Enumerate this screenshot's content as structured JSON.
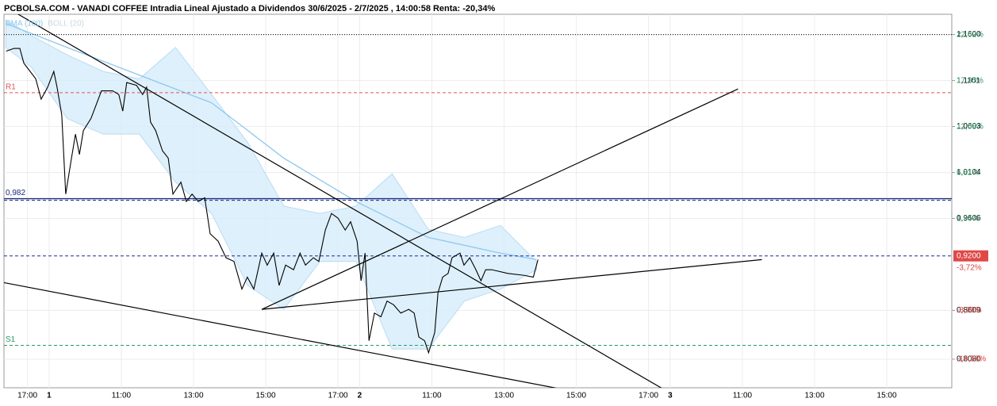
{
  "chart_data": {
    "type": "line",
    "title": "PCBOLSA.COM - VANADI COFFEE Intradia Lineal Ajustado a Dividendos 30/6/2025 - 2/7/2025 , 14:00:58 Renta: -20,34%",
    "xlim": [
      -1.25,
      25
    ],
    "ylim": [
      0.777,
      1.182
    ],
    "y2lim": [
      -17.85,
      24.98
    ],
    "grid": true,
    "xticks": [
      {
        "value": -0.6,
        "label": "17:00"
      },
      {
        "value": 0,
        "label": "1"
      },
      {
        "value": 2,
        "label": "11:00"
      },
      {
        "value": 4,
        "label": "13:00"
      },
      {
        "value": 6,
        "label": "15:00"
      },
      {
        "value": 8,
        "label": "17:00"
      },
      {
        "value": 8.6,
        "label": "2"
      },
      {
        "value": 10.6,
        "label": "11:00"
      },
      {
        "value": 12.6,
        "label": "13:00"
      },
      {
        "value": 14.6,
        "label": "15:00"
      },
      {
        "value": 16.6,
        "label": "17:00"
      },
      {
        "value": 17.2,
        "label": "3"
      },
      {
        "value": 19.2,
        "label": "11:00"
      },
      {
        "value": 21.2,
        "label": "13:00"
      },
      {
        "value": 23.2,
        "label": "15:00"
      }
    ],
    "yticks": [
      {
        "value": 1.16,
        "label": "1,1600"
      },
      {
        "value": 1.1101,
        "label": "1,1101"
      },
      {
        "value": 1.0603,
        "label": "1,0603"
      },
      {
        "value": 1.0104,
        "label": "1,0104"
      },
      {
        "value": 0.9606,
        "label": "0,9606"
      },
      {
        "value": 0.8609,
        "label": "0,8609"
      },
      {
        "value": 0.808,
        "label": "0,8080"
      }
    ],
    "y2ticks": [
      {
        "value": 22.62,
        "label": "22,62%"
      },
      {
        "value": 17.35,
        "label": "17,35%"
      },
      {
        "value": 12.08,
        "label": "12,08%"
      },
      {
        "value": 6.81,
        "label": "6,81%"
      },
      {
        "value": 1.54,
        "label": "1,54%"
      },
      {
        "value": -8.99,
        "label": "-8,99%"
      },
      {
        "value": -14.58,
        "label": "-14,58%"
      }
    ],
    "price": {
      "color": "#000000",
      "x": [
        -1.19,
        -0.97,
        -0.81,
        -0.7,
        -0.37,
        -0.22,
        -0.04,
        0.13,
        0.22,
        0.35,
        0.46,
        0.62,
        0.73,
        0.84,
        0.95,
        1.16,
        1.45,
        1.76,
        1.93,
        2.04,
        2.15,
        2.42,
        2.59,
        2.7,
        2.81,
        2.95,
        3.14,
        3.3,
        3.43,
        3.65,
        3.8,
        3.96,
        4.13,
        4.31,
        4.46,
        4.68,
        4.9,
        5.12,
        5.34,
        5.49,
        5.67,
        5.89,
        6.04,
        6.22,
        6.37,
        6.55,
        6.77,
        6.95,
        7.1,
        7.32,
        7.47,
        7.65,
        7.82,
        8.0,
        8.2,
        8.35,
        8.53,
        8.64,
        8.75,
        8.86,
        9.01,
        9.19,
        9.36,
        9.54,
        9.74,
        9.96,
        10.11,
        10.24,
        10.4,
        10.51,
        10.68,
        10.77,
        10.9,
        11.05,
        11.16,
        11.38,
        11.49,
        11.65,
        11.82,
        11.96,
        12.09,
        12.26,
        12.7,
        13.14,
        13.41,
        13.54
      ],
      "values": [
        1.142,
        1.145,
        1.145,
        1.129,
        1.112,
        1.09,
        1.103,
        1.12,
        1.103,
        1.073,
        0.987,
        1.026,
        1.052,
        1.03,
        1.056,
        1.069,
        1.099,
        1.099,
        1.095,
        1.077,
        1.108,
        1.105,
        1.095,
        1.103,
        1.065,
        1.056,
        1.034,
        1.026,
        0.987,
        1.0,
        0.979,
        0.987,
        0.979,
        0.983,
        0.944,
        0.936,
        0.918,
        0.914,
        0.884,
        0.897,
        0.884,
        0.923,
        0.91,
        0.923,
        0.888,
        0.91,
        0.905,
        0.923,
        0.91,
        0.918,
        0.914,
        0.948,
        0.966,
        0.961,
        0.948,
        0.957,
        0.936,
        0.893,
        0.923,
        0.828,
        0.858,
        0.854,
        0.871,
        0.867,
        0.858,
        0.862,
        0.858,
        0.832,
        0.828,
        0.815,
        0.837,
        0.88,
        0.897,
        0.901,
        0.918,
        0.923,
        0.91,
        0.918,
        0.905,
        0.893,
        0.905,
        0.905,
        0.901,
        0.899,
        0.897,
        0.916
      ]
    },
    "series": [
      {
        "name": "SMA (100)",
        "color": "#8cc8ee",
        "x": [
          -1.2,
          0.5,
          2.5,
          4.5,
          6.5,
          8.5,
          10.5,
          12.5,
          13.5
        ],
        "values": [
          1.172,
          1.146,
          1.116,
          1.086,
          1.026,
          0.979,
          0.94,
          0.923,
          0.916
        ]
      }
    ],
    "band": {
      "name": "BOLL (20)",
      "color": "#d6ecfa",
      "x": [
        -1.2,
        -0.5,
        0.5,
        1.5,
        2.5,
        3.5,
        4.5,
        5.5,
        6.5,
        7.5,
        8.5,
        9.5,
        10.5,
        11.5,
        12.5,
        13.5
      ],
      "upper": [
        1.176,
        1.159,
        1.138,
        1.12,
        1.112,
        1.146,
        1.095,
        1.043,
        0.974,
        0.966,
        0.974,
        1.009,
        0.949,
        0.94,
        0.953,
        0.914
      ],
      "lower": [
        1.146,
        1.125,
        1.069,
        1.052,
        1.052,
        1.0,
        0.966,
        0.888,
        0.862,
        0.914,
        0.914,
        0.819,
        0.819,
        0.871,
        0.884,
        0.905
      ]
    },
    "levels": [
      {
        "value": 1.16,
        "color": "#000000",
        "style": "dotted"
      },
      {
        "value": 1.097,
        "label": "R1",
        "color": "#e05555",
        "style": "dashed"
      },
      {
        "value": 0.982,
        "label": "0,982",
        "color": "#1a2a7a",
        "style": "double"
      },
      {
        "value": 0.823,
        "label": "S1",
        "color": "#2a9a6a",
        "style": "dashed"
      }
    ],
    "last": {
      "value": 0.92,
      "label": "0,9200",
      "change": "-3,72%",
      "color": "#1a2a9a"
    },
    "trendlines": [
      {
        "x": [
          -1.25,
          16.99
        ],
        "y": [
          1.191,
          0.776
        ]
      },
      {
        "x": [
          -1.25,
          14.13
        ],
        "y": [
          0.891,
          0.776
        ]
      },
      {
        "x": [
          5.89,
          19.08
        ],
        "y": [
          0.862,
          1.101
        ]
      },
      {
        "x": [
          5.89,
          19.74
        ],
        "y": [
          0.862,
          0.916
        ]
      }
    ]
  }
}
